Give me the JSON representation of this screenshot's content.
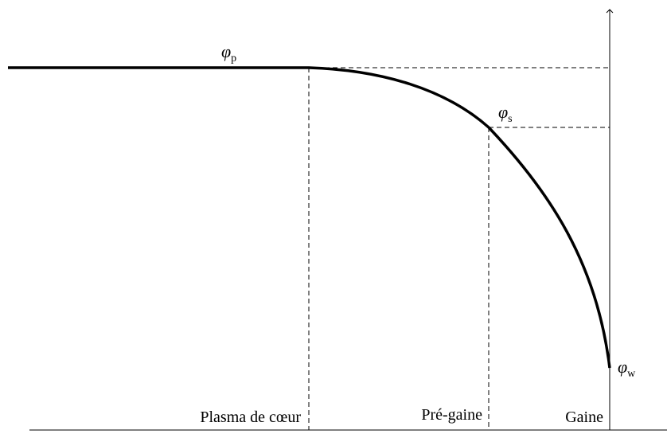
{
  "labels": {
    "phi_p": {
      "symbol": "φ",
      "subscript": "p"
    },
    "phi_s": {
      "symbol": "φ",
      "subscript": "s"
    },
    "phi_w": {
      "symbol": "φ",
      "subscript": "w"
    }
  },
  "regions": [
    "Plasma de cœur",
    "Pré-gaine",
    "Gaine"
  ]
}
